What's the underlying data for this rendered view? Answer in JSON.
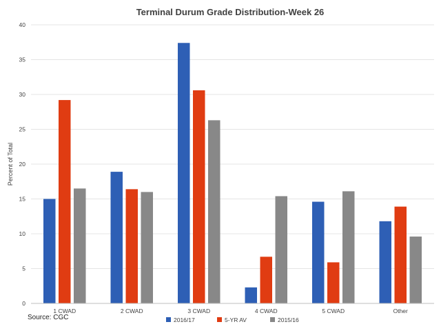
{
  "chart_data": {
    "type": "bar",
    "title": "Terminal Durum Grade Distribution-Week 26",
    "xlabel": "",
    "ylabel": "Percent of Total",
    "ylim": [
      0,
      40
    ],
    "yticks": [
      0,
      5,
      10,
      15,
      20,
      25,
      30,
      35,
      40
    ],
    "categories": [
      "1 CWAD",
      "2 CWAD",
      "3 CWAD",
      "4 CWAD",
      "5 CWAD",
      "Other"
    ],
    "series": [
      {
        "name": "2016/17",
        "color": "#2e5fb5",
        "values": [
          15.0,
          18.9,
          37.4,
          2.3,
          14.6,
          11.8
        ]
      },
      {
        "name": "5-YR AV",
        "color": "#e03c12",
        "values": [
          29.2,
          16.4,
          30.6,
          6.7,
          5.9,
          13.9
        ]
      },
      {
        "name": "2015/16",
        "color": "#888888",
        "values": [
          16.5,
          16.0,
          26.3,
          15.4,
          16.1,
          9.6
        ]
      }
    ],
    "grid": true,
    "legend_position": "bottom"
  },
  "source": "Source: CGC"
}
